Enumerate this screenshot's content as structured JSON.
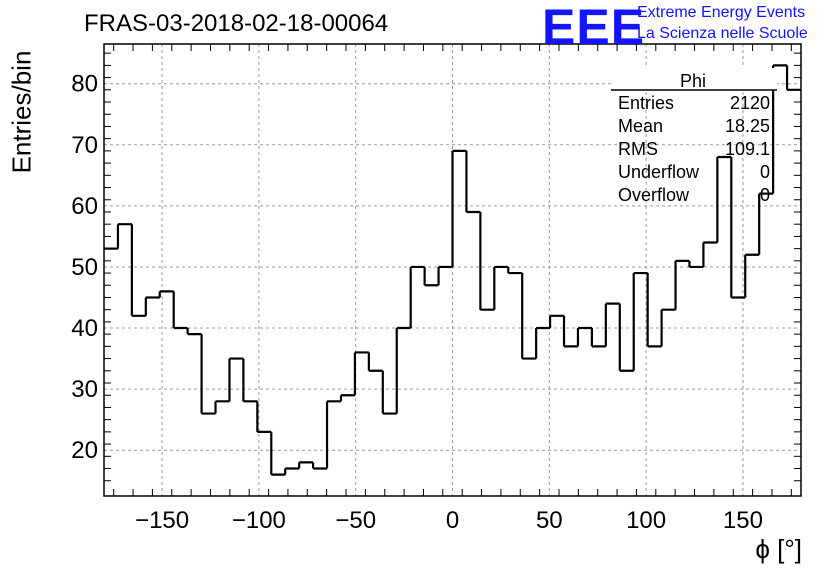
{
  "chart_data": {
    "type": "bar",
    "histogram": true,
    "title": "FRAS-03-2018-02-18-00064",
    "xlabel": "ϕ [°]",
    "ylabel": "Entries/bin",
    "xlim": [
      -180,
      180
    ],
    "ylim": [
      12.5,
      86.5
    ],
    "xticks": [
      -150,
      -100,
      -50,
      0,
      50,
      100,
      150
    ],
    "xtick_labels": [
      "−150",
      "−100",
      "−50",
      "0",
      "50",
      "100",
      "150"
    ],
    "yticks": [
      20,
      30,
      40,
      50,
      60,
      70,
      80
    ],
    "ytick_labels": [
      "20",
      "30",
      "40",
      "50",
      "60",
      "70",
      "80"
    ],
    "grid": true,
    "bin_width": 7.2,
    "values": [
      53,
      57,
      42,
      45,
      46,
      40,
      39,
      26,
      28,
      35,
      28,
      23,
      16,
      17,
      18,
      17,
      28,
      29,
      36,
      33,
      26,
      40,
      50,
      47,
      50,
      69,
      59,
      43,
      50,
      49,
      35,
      40,
      42,
      37,
      40,
      37,
      44,
      33,
      49,
      37,
      43,
      51,
      50,
      54,
      68,
      45,
      52,
      62,
      83,
      79
    ],
    "stats": {
      "name": "Phi",
      "rows": [
        {
          "label": "Entries",
          "value": "2120"
        },
        {
          "label": "Mean",
          "value": "18.25"
        },
        {
          "label": "RMS",
          "value": "109.1"
        },
        {
          "label": "Underflow",
          "value": "0"
        },
        {
          "label": "Overflow",
          "value": "0"
        }
      ]
    }
  },
  "logo": {
    "mark": "EEE",
    "line1": "Extreme Energy Events",
    "line2": "La Scienza nelle Scuole",
    "color": "#1414ff"
  }
}
